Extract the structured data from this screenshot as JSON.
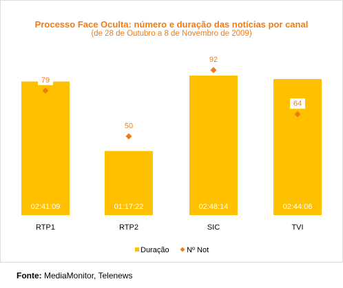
{
  "chart_data": {
    "type": "bar",
    "title": "Processo Face Oculta: número e duração das notícias por canal",
    "subtitle": "(de 28 de Outubro a 8 de Novembro de 2009)",
    "categories": [
      "RTP1",
      "RTP2",
      "SIC",
      "TVI"
    ],
    "series": [
      {
        "name": "Duração",
        "kind": "bar",
        "values": [
          "02:41:09",
          "01:17:22",
          "02:48:14",
          "02:44:06"
        ],
        "seconds": [
          9669,
          4642,
          10094,
          9846
        ],
        "color": "#ffc000"
      },
      {
        "name": "Nº Not",
        "kind": "marker",
        "values": [
          79,
          50,
          92,
          64
        ],
        "color": "#f07b16"
      }
    ],
    "grid": false,
    "legend_position": "bottom"
  },
  "source": {
    "label": "Fonte:",
    "text": "MediaMonitor,  Telenews"
  }
}
